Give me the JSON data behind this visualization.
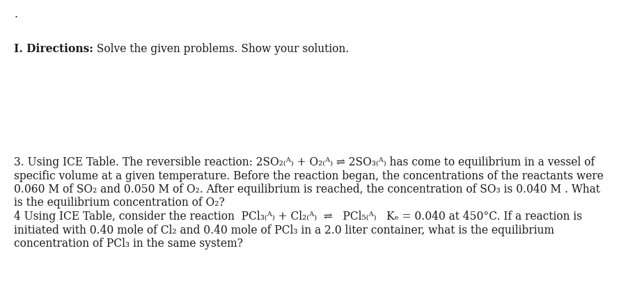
{
  "background_color": "#ffffff",
  "text_color": "#1a1a1a",
  "font_size": 11.2,
  "font_family": "DejaVu Serif",
  "dot": ".",
  "heading_bold": "I. Directions:",
  "heading_normal": " Solve the given problems. Show your solution.",
  "lines": [
    "",
    "3. Using ICE Table. The reversible reaction: 2SO₂₍ᴬ₎ + O₂₍ᴬ₎ ⇌ 2SO₃₍ᴬ₎ has come to equilibrium in a vessel of",
    "specific volume at a given temperature. Before the reaction began, the concentrations of the reactants were",
    "0.060 M of SO₂ and 0.050 M of O₂. After equilibrium is reached, the concentration of SO₃ is 0.040 M . What",
    "is the equilibrium concentration of O₂?",
    "4 Using ICE Table, consider the reaction  PCl₃₍ᴬ₎ + Cl₂₍ᴬ₎  ⇌   PCl₅₍ᴬ₎   Kₑ = 0.040 at 450°C. If a reaction is",
    "initiated with 0.40 mole of Cl₂ and 0.40 mole of PCl₃ in a 2.0 liter container, what is the equilibrium",
    "concentration of PCl₃ in the same system?"
  ]
}
